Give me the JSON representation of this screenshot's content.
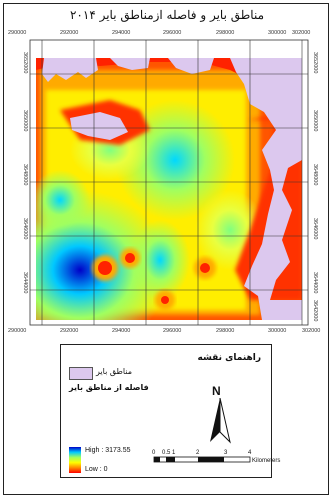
{
  "map": {
    "title": "مناطق بایر و فاصله ازمناطق بایر ۲۰۱۴",
    "x_ticks": [
      "290000",
      "292000",
      "294000",
      "296000",
      "298000",
      "300000",
      "302000"
    ],
    "y_ticks": [
      "3652000",
      "3650000",
      "3648000",
      "3646000",
      "3644000",
      "3642000"
    ],
    "colors": {
      "barren": "#dcc8ee",
      "high": "#0000c8",
      "low": "#ff0000"
    }
  },
  "legend": {
    "title": "راهنمای نقشه",
    "barren_label": "مناطق بایر",
    "distance_label": "فاصله از مناطق بایر",
    "high_label": "High : 3173.55",
    "low_label": "Low : 0"
  },
  "north": {
    "letter": "N"
  },
  "scale": {
    "labels": [
      "0",
      "0.5",
      "1",
      "2",
      "3",
      "4"
    ],
    "unit": "Kilometers"
  }
}
